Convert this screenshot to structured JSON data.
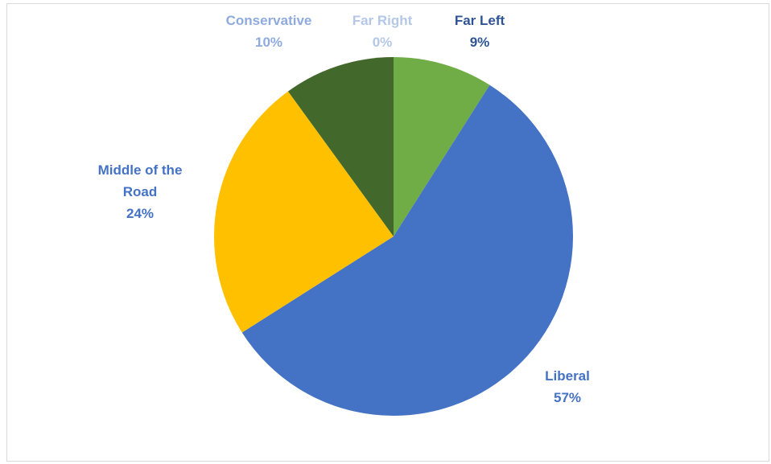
{
  "chart_data": {
    "type": "pie",
    "title": "",
    "categories": [
      "Far Left",
      "Liberal",
      "Middle of the Road",
      "Conservative",
      "Far Right"
    ],
    "values": [
      9,
      57,
      24,
      10,
      0
    ],
    "value_labels": [
      "9%",
      "57%",
      "24%",
      "10%",
      "0%"
    ],
    "label_lines": [
      [
        "Far Left"
      ],
      [
        "Liberal"
      ],
      [
        "Middle of the",
        "Road"
      ],
      [
        "Conservative"
      ],
      [
        "Far Right"
      ]
    ],
    "slice_colors": [
      "#70ad47",
      "#4472c4",
      "#ffc000",
      "#43682b",
      "#a9c0e6"
    ],
    "label_colors": [
      "#2f5496",
      "#4472c4",
      "#4472c4",
      "#8faadc",
      "#b4c7e7"
    ],
    "start_angle": "12 o'clock",
    "direction": "clockwise",
    "legend": "none",
    "border_color": "#d9d9d9"
  }
}
